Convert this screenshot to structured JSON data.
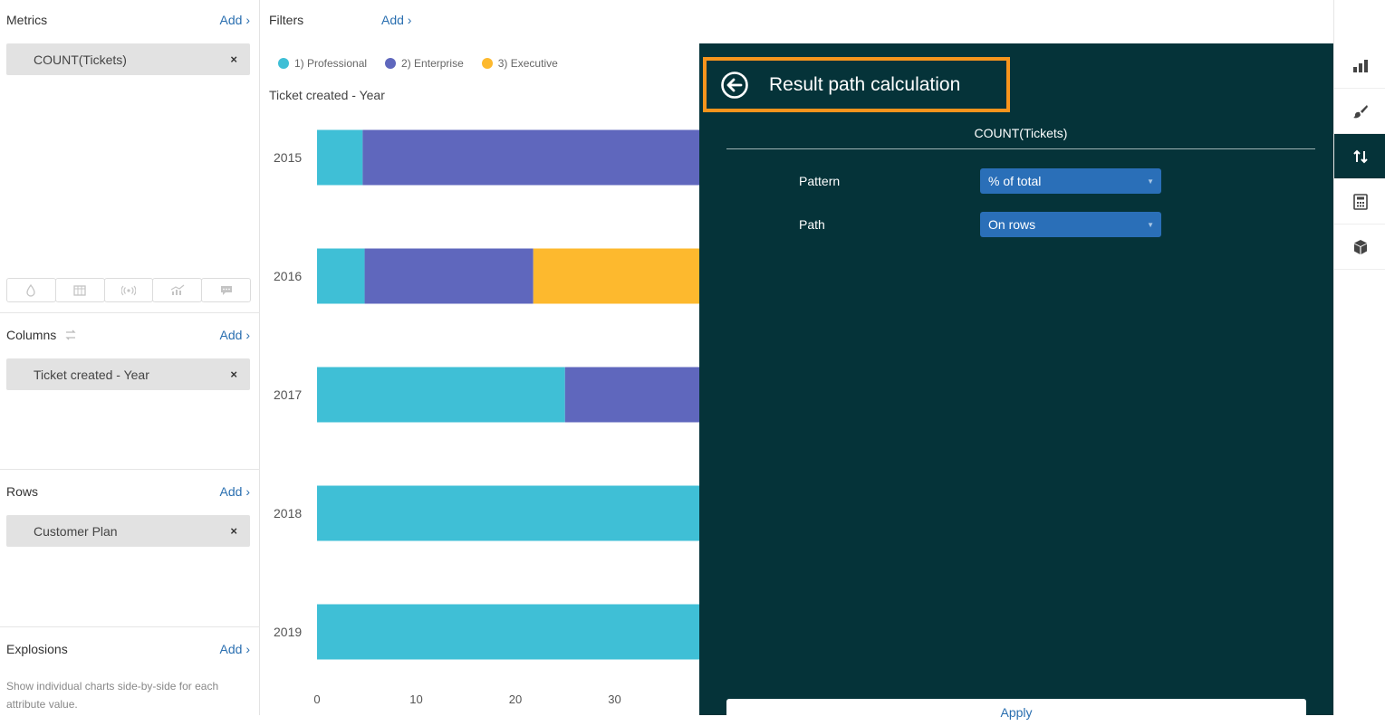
{
  "left": {
    "metrics": {
      "title": "Metrics",
      "add": "Add ›",
      "chips": [
        {
          "label": "COUNT(Tickets)",
          "remove": "×"
        }
      ]
    },
    "viz_icons": [
      "drop-icon",
      "table-icon",
      "radio-icon",
      "chart-line-icon",
      "comment-icon"
    ],
    "columns": {
      "title": "Columns",
      "add": "Add ›",
      "chips": [
        {
          "label": "Ticket created - Year",
          "remove": "×"
        }
      ]
    },
    "rows": {
      "title": "Rows",
      "add": "Add ›",
      "chips": [
        {
          "label": "Customer Plan",
          "remove": "×"
        }
      ]
    },
    "explosions": {
      "title": "Explosions",
      "add": "Add ›",
      "description": "Show individual charts side-by-side for each attribute value."
    }
  },
  "filters": {
    "title": "Filters",
    "add": "Add ›"
  },
  "chart_data": {
    "type": "bar",
    "orientation": "horizontal",
    "stacked": true,
    "ylabel": "Ticket created - Year",
    "categories": [
      "2015",
      "2016",
      "2017",
      "2018",
      "2019"
    ],
    "series": [
      {
        "name": "1) Professional",
        "color": "#3fbfd6",
        "values": [
          4.6,
          4.8,
          25,
          39,
          39
        ]
      },
      {
        "name": "2) Enterprise",
        "color": "#5f67bd",
        "values": [
          34.4,
          17,
          14,
          0,
          0
        ]
      },
      {
        "name": "3) Executive",
        "color": "#fdb92e",
        "values": [
          0,
          17.2,
          0,
          0,
          0
        ]
      }
    ],
    "x_ticks": [
      0,
      10,
      20,
      30
    ],
    "xlim": [
      0,
      39
    ],
    "legend": "top-left"
  },
  "panel": {
    "title": "Result path calculation",
    "metric": "COUNT(Tickets)",
    "pattern": {
      "label": "Pattern",
      "value": "% of total"
    },
    "path": {
      "label": "Path",
      "value": "On rows"
    },
    "apply": "Apply"
  },
  "rail": [
    "bar-chart-icon",
    "brush-icon",
    "sort-arrows-icon",
    "calculator-icon",
    "cube-icon"
  ]
}
